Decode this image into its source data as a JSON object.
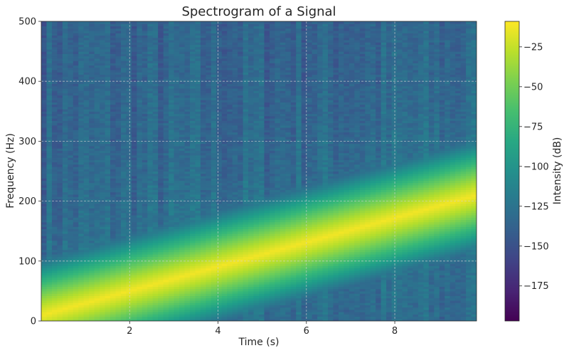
{
  "chart_data": {
    "type": "heatmap",
    "title": "Spectrogram of a Signal",
    "xlabel": "Time (s)",
    "ylabel": "Frequency (Hz)",
    "xlim": [
      0,
      9.85
    ],
    "ylim": [
      0,
      500
    ],
    "xticks": [
      2,
      4,
      6,
      8
    ],
    "yticks": [
      0,
      100,
      200,
      300,
      400,
      500
    ],
    "grid": true,
    "colormap": "viridis",
    "colorbar": {
      "label": "Intensity (dB)",
      "range": [
        -197,
        -9
      ],
      "ticks": [
        -25,
        -50,
        -75,
        -100,
        -125,
        -150,
        -175
      ]
    },
    "ridge": {
      "description_values": "dominant frequency vs time",
      "start": {
        "time": 0,
        "frequency": 10,
        "intensity": -12
      },
      "end": {
        "time": 9.85,
        "frequency": 210,
        "intensity": -12
      }
    },
    "background_intensity_range": [
      -170,
      -110
    ]
  }
}
